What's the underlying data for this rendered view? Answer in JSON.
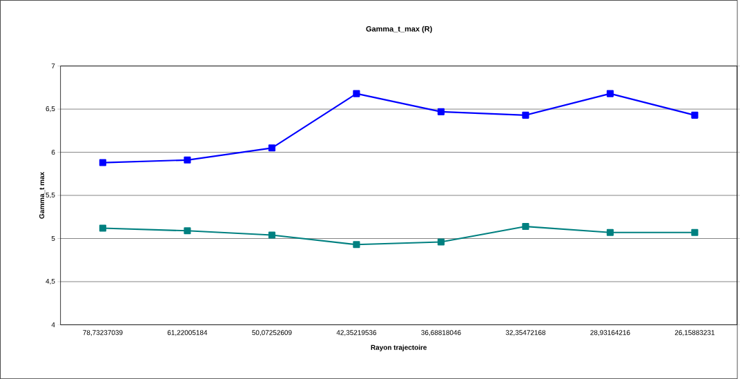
{
  "chart_data": {
    "type": "line",
    "title": "Gamma_t_max (R)",
    "xlabel": "Rayon trajectoire",
    "ylabel": "Gamma_t max",
    "categories": [
      "78,73237039",
      "61,22005184",
      "50,07252609",
      "42,35219536",
      "36,68818046",
      "32,35472168",
      "28,93164216",
      "26,15883231"
    ],
    "series": [
      {
        "color": "#0000ff",
        "values": [
          5.88,
          5.91,
          6.05,
          6.68,
          6.47,
          6.43,
          6.68,
          6.43
        ]
      },
      {
        "color": "#008080",
        "values": [
          5.12,
          5.09,
          5.04,
          4.93,
          4.96,
          5.14,
          5.07,
          5.07
        ]
      }
    ],
    "ylim": [
      4,
      7
    ],
    "yticks": [
      {
        "value": 4,
        "label": "4"
      },
      {
        "value": 4.5,
        "label": "4,5"
      },
      {
        "value": 5,
        "label": "5"
      },
      {
        "value": 5.5,
        "label": "5,5"
      },
      {
        "value": 6,
        "label": "6"
      },
      {
        "value": 6.5,
        "label": "6,5"
      },
      {
        "value": 7,
        "label": "7"
      }
    ],
    "grid": "y",
    "marker": "square",
    "line_style": "solid"
  }
}
